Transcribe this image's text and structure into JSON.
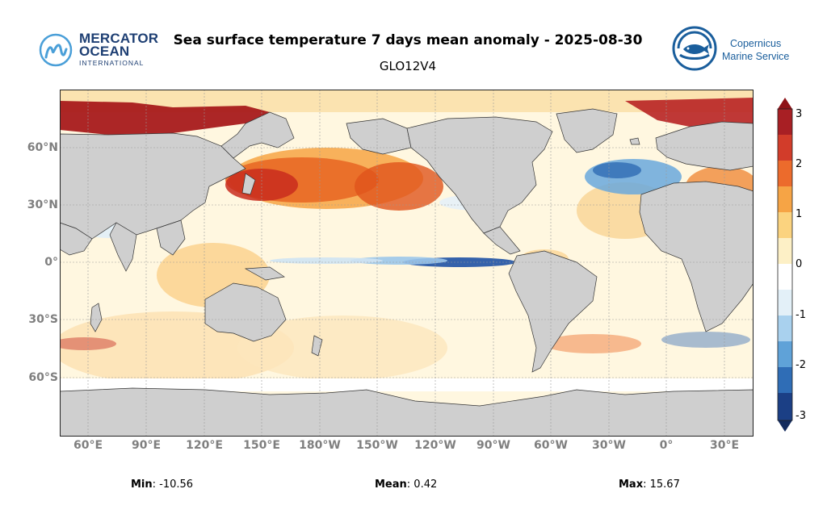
{
  "header": {
    "title": "Sea surface temperature 7 days mean anomaly - 2025-08-30",
    "subtitle": "GLO12V4"
  },
  "logos": {
    "left": {
      "line1": "MERCATOR",
      "line2": "OCEAN",
      "line3": "INTERNATIONAL"
    },
    "right": {
      "line1": "Copernicus",
      "line2": "Marine Service"
    }
  },
  "map": {
    "y_labels": [
      "60°N",
      "30°N",
      "0°",
      "30°S",
      "60°S"
    ],
    "x_labels": [
      "60°E",
      "90°E",
      "120°E",
      "150°E",
      "180°W",
      "150°W",
      "120°W",
      "90°W",
      "60°W",
      "30°W",
      "0°",
      "30°E"
    ]
  },
  "colorbar": {
    "ticks": [
      "3",
      "2",
      "1",
      "0",
      "-1",
      "-2",
      "-3"
    ],
    "min": -3,
    "max": 3
  },
  "stats": {
    "min_label": "Min",
    "min_value": "-10.56",
    "mean_label": "Mean",
    "mean_value": "0.42",
    "max_label": "Max",
    "max_value": "15.67"
  },
  "colors": {
    "land": "#cfcfcf",
    "warm_strong": "#a51a1c",
    "cold_strong": "#1f4a9a"
  }
}
